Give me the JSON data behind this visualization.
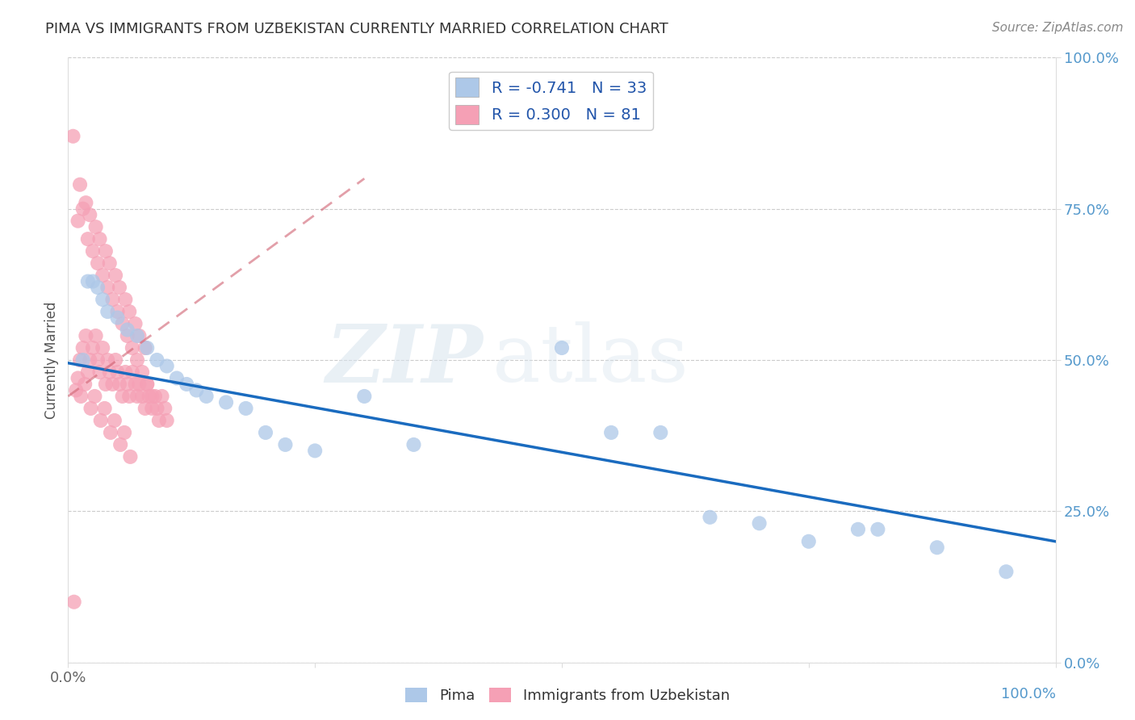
{
  "title": "PIMA VS IMMIGRANTS FROM UZBEKISTAN CURRENTLY MARRIED CORRELATION CHART",
  "source": "Source: ZipAtlas.com",
  "ylabel": "Currently Married",
  "watermark_zip": "ZIP",
  "watermark_atlas": "atlas",
  "legend_pima_r": "-0.741",
  "legend_pima_n": "33",
  "legend_uzb_r": "0.300",
  "legend_uzb_n": "81",
  "pima_color": "#adc8e8",
  "uzb_color": "#f5a0b5",
  "pima_line_color": "#1a6bbf",
  "uzb_line_color": "#d06070",
  "background_color": "#ffffff",
  "grid_color": "#cccccc",
  "right_axis_color": "#5599cc",
  "pima_x": [
    1.5,
    2.0,
    2.5,
    3.0,
    3.5,
    4.0,
    5.0,
    6.0,
    7.0,
    8.0,
    9.0,
    10.0,
    11.0,
    12.0,
    13.0,
    14.0,
    16.0,
    18.0,
    20.0,
    22.0,
    25.0,
    30.0,
    35.0,
    50.0,
    55.0,
    60.0,
    65.0,
    70.0,
    75.0,
    80.0,
    82.0,
    88.0,
    95.0
  ],
  "pima_y": [
    50.0,
    63.0,
    63.0,
    62.0,
    60.0,
    58.0,
    57.0,
    55.0,
    54.0,
    52.0,
    50.0,
    49.0,
    47.0,
    46.0,
    45.0,
    44.0,
    43.0,
    42.0,
    38.0,
    36.0,
    35.0,
    44.0,
    36.0,
    52.0,
    38.0,
    38.0,
    24.0,
    23.0,
    20.0,
    22.0,
    22.0,
    19.0,
    15.0
  ],
  "uzb_x": [
    0.5,
    1.0,
    1.2,
    1.5,
    1.8,
    2.0,
    2.2,
    2.5,
    2.8,
    3.0,
    3.2,
    3.5,
    3.8,
    4.0,
    4.2,
    4.5,
    4.8,
    5.0,
    5.2,
    5.5,
    5.8,
    6.0,
    6.2,
    6.5,
    6.8,
    7.0,
    7.2,
    7.5,
    7.8,
    8.0,
    8.2,
    8.5,
    8.8,
    9.0,
    9.2,
    9.5,
    9.8,
    10.0,
    1.0,
    1.5,
    2.0,
    2.5,
    3.0,
    3.5,
    4.0,
    4.5,
    5.0,
    5.5,
    6.0,
    6.5,
    7.0,
    7.5,
    8.0,
    8.5,
    1.2,
    1.8,
    2.2,
    2.8,
    3.2,
    3.8,
    4.2,
    4.8,
    5.2,
    5.8,
    6.2,
    6.8,
    7.2,
    7.8,
    0.8,
    1.3,
    1.7,
    2.3,
    2.7,
    3.3,
    3.7,
    4.3,
    4.7,
    5.3,
    5.7,
    6.3,
    0.6
  ],
  "uzb_y": [
    87.0,
    47.0,
    50.0,
    52.0,
    54.0,
    48.0,
    50.0,
    52.0,
    54.0,
    50.0,
    48.0,
    52.0,
    46.0,
    50.0,
    48.0,
    46.0,
    50.0,
    48.0,
    46.0,
    44.0,
    48.0,
    46.0,
    44.0,
    48.0,
    46.0,
    44.0,
    46.0,
    44.0,
    42.0,
    46.0,
    44.0,
    42.0,
    44.0,
    42.0,
    40.0,
    44.0,
    42.0,
    40.0,
    73.0,
    75.0,
    70.0,
    68.0,
    66.0,
    64.0,
    62.0,
    60.0,
    58.0,
    56.0,
    54.0,
    52.0,
    50.0,
    48.0,
    46.0,
    44.0,
    79.0,
    76.0,
    74.0,
    72.0,
    70.0,
    68.0,
    66.0,
    64.0,
    62.0,
    60.0,
    58.0,
    56.0,
    54.0,
    52.0,
    45.0,
    44.0,
    46.0,
    42.0,
    44.0,
    40.0,
    42.0,
    38.0,
    40.0,
    36.0,
    38.0,
    34.0,
    10.0
  ],
  "pima_trend": [
    0.0,
    100.0,
    49.5,
    20.0
  ],
  "uzb_trend": [
    0.0,
    30.0,
    44.0,
    80.0
  ],
  "xlim": [
    0.0,
    100.0
  ],
  "ylim": [
    0.0,
    100.0
  ],
  "xticks": [
    0.0,
    25.0,
    50.0,
    75.0,
    100.0
  ],
  "yticks": [
    0.0,
    25.0,
    50.0,
    75.0,
    100.0
  ]
}
